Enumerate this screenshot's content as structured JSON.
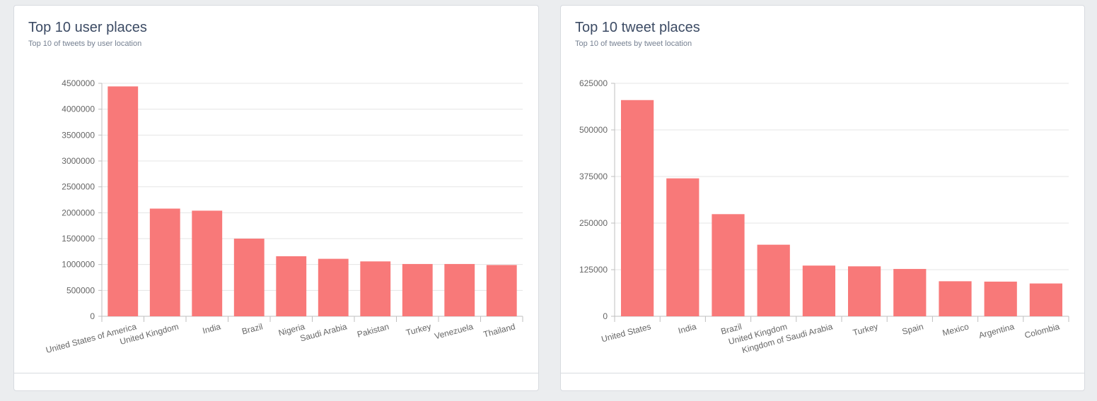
{
  "colors": {
    "background": "#ebedef",
    "card": "#ffffff",
    "bar": "#f87979",
    "grid": "#e5e5e5",
    "axis_text": "#666666",
    "title": "#3c4b64",
    "subtitle": "#768192"
  },
  "cards": [
    {
      "title": "Top 10 user places",
      "subtitle": "Top 10 of tweets by user location"
    },
    {
      "title": "Top 10 tweet places",
      "subtitle": "Top 10 of tweets by tweet location"
    }
  ],
  "chart_data": [
    {
      "type": "bar",
      "title": "Top 10 user places",
      "subtitle": "Top 10 of tweets by user location",
      "categories": [
        "United States of America",
        "United Kingdom",
        "India",
        "Brazil",
        "Nigeria",
        "Saudi Arabia",
        "Pakistan",
        "Turkey",
        "Venezuela",
        "Thailand"
      ],
      "values": [
        4440000,
        2080000,
        2040000,
        1500000,
        1160000,
        1110000,
        1060000,
        1010000,
        1010000,
        990000
      ],
      "ylim": [
        0,
        4500000
      ],
      "yticks": [
        "0",
        "500000",
        "1000000",
        "1500000",
        "2000000",
        "2500000",
        "3000000",
        "3500000",
        "4000000",
        "4500000"
      ],
      "grid": true,
      "legend": "none"
    },
    {
      "type": "bar",
      "title": "Top 10 tweet places",
      "subtitle": "Top 10 of tweets by tweet location",
      "categories": [
        "United States",
        "India",
        "Brazil",
        "United Kingdom",
        "Kingdom of Saudi Arabia",
        "Turkey",
        "Spain",
        "Mexico",
        "Argentina",
        "Colombia"
      ],
      "values": [
        580000,
        370000,
        274000,
        192000,
        136000,
        134000,
        127000,
        94000,
        93000,
        88000
      ],
      "ylim": [
        0,
        625000
      ],
      "yticks": [
        "0",
        "125000",
        "250000",
        "375000",
        "500000",
        "625000"
      ],
      "grid": true,
      "legend": "none"
    }
  ]
}
